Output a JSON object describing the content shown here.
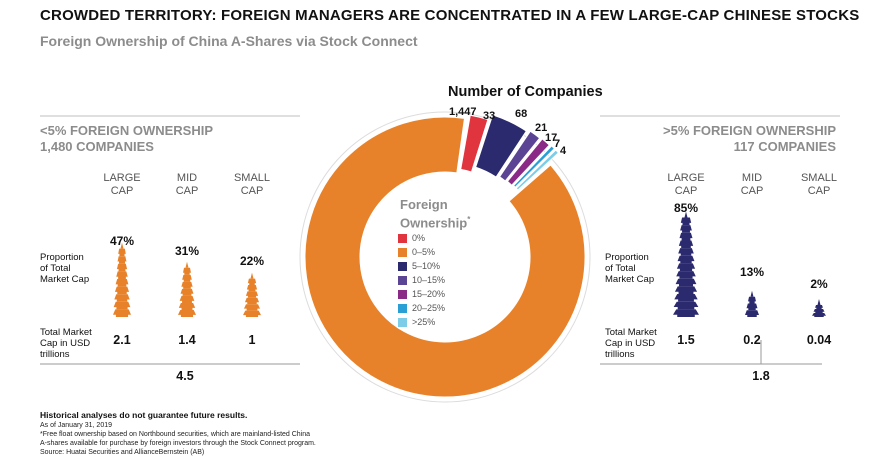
{
  "title": "CROWDED TERRITORY: FOREIGN MANAGERS ARE CONCENTRATED IN A FEW LARGE-CAP CHINESE STOCKS",
  "subtitle": "Foreign Ownership of China A-Shares via Stock Connect",
  "colors": {
    "orange": "#e8822a",
    "red": "#e0343e",
    "navy": "#2b2a6e",
    "purple": "#5b4494",
    "magenta": "#8a2a86",
    "blue": "#2a9fd6",
    "lightblue": "#7ecde8",
    "gray": "#8c8c8c"
  },
  "left": {
    "header_line1": "<5% FOREIGN OWNERSHIP",
    "header_line2": "1,480 COMPANIES",
    "caps": [
      {
        "line1": "LARGE",
        "line2": "CAP",
        "pct": "47%",
        "value": "2.1"
      },
      {
        "line1": "MID",
        "line2": "CAP",
        "pct": "31%",
        "value": "1.4"
      },
      {
        "line1": "SMALL",
        "line2": "CAP",
        "pct": "22%",
        "value": "1"
      }
    ],
    "total": "4.5"
  },
  "right": {
    "header_line1": ">5% FOREIGN OWNERSHIP",
    "header_line2": "117 COMPANIES",
    "caps": [
      {
        "line1": "LARGE",
        "line2": "CAP",
        "pct": "85%",
        "value": "1.5"
      },
      {
        "line1": "MID",
        "line2": "CAP",
        "pct": "13%",
        "value": "0.2"
      },
      {
        "line1": "SMALL",
        "line2": "CAP",
        "pct": "2%",
        "value": "0.04"
      }
    ],
    "total": "1.8"
  },
  "row_labels": {
    "proportion": [
      "Proportion",
      "of Total",
      "Market Cap"
    ],
    "market_cap": [
      "Total Market",
      "Cap in USD",
      "trillions"
    ]
  },
  "legend": {
    "title_line1": "Foreign",
    "title_line2": "Ownership",
    "asterisk": "*",
    "items": [
      "0%",
      "0–5%",
      "5–10%",
      "10–15%",
      "15–20%",
      "20–25%",
      ">25%"
    ]
  },
  "chart_data": {
    "type": "pie",
    "title": "Number of Companies",
    "categories": [
      "0%",
      "0–5%",
      "5–10%",
      "10–15%",
      "15–20%",
      "20–25%",
      ">25%"
    ],
    "values": [
      33,
      1447,
      68,
      21,
      17,
      7,
      4
    ],
    "labels": [
      "33",
      "1,447",
      "68",
      "21",
      "17",
      "7",
      "4"
    ]
  },
  "footnotes": {
    "bold": "Historical analyses do not guarantee future results.",
    "lines": [
      "As of January 31, 2019",
      "*Free float ownership based on Northbound securities, which are mainland-listed China",
      "A-shares available for purchase by foreign investors through the Stock Connect program.",
      "Source: Huatai Securities and AllianceBernstein (AB)"
    ]
  }
}
